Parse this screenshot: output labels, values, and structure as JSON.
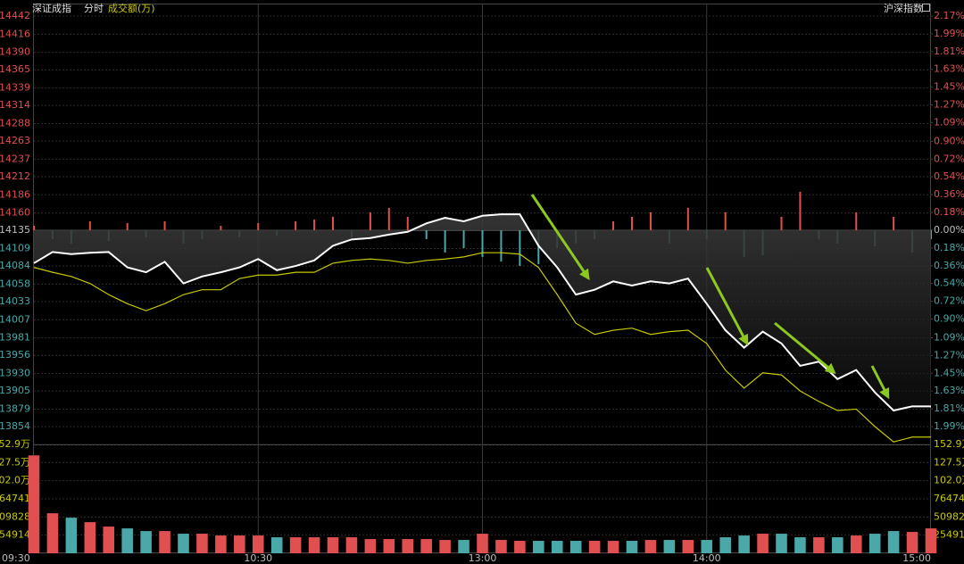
{
  "chart_data": {
    "type": "line",
    "title": "深证成指",
    "subtitle": "分时",
    "volume_label": "成交额(万)",
    "index_label": "沪深指数",
    "x": [
      0,
      5,
      10,
      15,
      20,
      25,
      30,
      35,
      40,
      45,
      50,
      55,
      60,
      65,
      70,
      75,
      80,
      85,
      90,
      95,
      100,
      105,
      110,
      115,
      120,
      125,
      130,
      135,
      140,
      145,
      150,
      155,
      160,
      165,
      170,
      175,
      180,
      185,
      190,
      195,
      200,
      205,
      210,
      215,
      220,
      225,
      230,
      235,
      240
    ],
    "xlim": [
      0,
      240
    ],
    "xticks": [
      {
        "value": 0,
        "label": "09:30"
      },
      {
        "value": 60,
        "label": "10:30"
      },
      {
        "value": 120,
        "label": "13:00"
      },
      {
        "value": 180,
        "label": "14:00"
      },
      {
        "value": 240,
        "label": "15:00"
      }
    ],
    "ylim": [
      13854,
      14442
    ],
    "yticks": [
      14442,
      14416,
      14390,
      14365,
      14339,
      14314,
      14288,
      14263,
      14237,
      14212,
      14186,
      14160,
      14135,
      14109,
      14084,
      14058,
      14033,
      14007,
      13981,
      13956,
      13930,
      13905,
      13879,
      13854
    ],
    "y2lim": [
      -1.99,
      2.17
    ],
    "y2ticks": [
      {
        "value": 2.17,
        "label": "2.17%"
      },
      {
        "value": 1.99,
        "label": "1.99%"
      },
      {
        "value": 1.81,
        "label": "1.81%"
      },
      {
        "value": 1.63,
        "label": "1.63%"
      },
      {
        "value": 1.45,
        "label": "1.45%"
      },
      {
        "value": 1.27,
        "label": "1.27%"
      },
      {
        "value": 1.09,
        "label": "1.09%"
      },
      {
        "value": 0.9,
        "label": "0.90%"
      },
      {
        "value": 0.72,
        "label": "0.72%"
      },
      {
        "value": 0.54,
        "label": "0.54%"
      },
      {
        "value": 0.36,
        "label": "0.36%"
      },
      {
        "value": 0.18,
        "label": "0.18%"
      },
      {
        "value": 0,
        "label": "0.00%"
      },
      {
        "value": -0.18,
        "label": "0.18%"
      },
      {
        "value": -0.36,
        "label": "0.36%"
      },
      {
        "value": -0.54,
        "label": "0.54%"
      },
      {
        "value": -0.72,
        "label": "0.72%"
      },
      {
        "value": -0.9,
        "label": "0.90%"
      },
      {
        "value": -1.09,
        "label": "1.09%"
      },
      {
        "value": -1.27,
        "label": "1.27%"
      },
      {
        "value": -1.45,
        "label": "1.45%"
      },
      {
        "value": -1.63,
        "label": "1.63%"
      },
      {
        "value": -1.81,
        "label": "1.81%"
      },
      {
        "value": -1.99,
        "label": "1.99%"
      }
    ],
    "up_color": "#e05050",
    "down_color": "#4aa8a8",
    "grid": true,
    "series": [
      {
        "color": "#ffffff",
        "values": [
          14088,
          14104,
          14101,
          14103,
          14104,
          14082,
          14075,
          14090,
          14059,
          14069,
          14075,
          14082,
          14094,
          14078,
          14084,
          14092,
          14113,
          14122,
          14124,
          14129,
          14133,
          14145,
          14153,
          14148,
          14156,
          14158,
          14158,
          14113,
          14082,
          14043,
          14050,
          14062,
          14056,
          14062,
          14059,
          14066,
          14030,
          13992,
          13967,
          13990,
          13973,
          13941,
          13947,
          13922,
          13935,
          13903,
          13877,
          13883,
          13883
        ]
      },
      {
        "color": "#c8c800",
        "values": [
          14082,
          14075,
          14069,
          14059,
          14043,
          14030,
          14020,
          14030,
          14043,
          14050,
          14050,
          14066,
          14071,
          14071,
          14075,
          14075,
          14088,
          14092,
          14094,
          14092,
          14088,
          14092,
          14094,
          14097,
          14103,
          14103,
          14101,
          14082,
          14043,
          14002,
          13986,
          13992,
          13995,
          13986,
          13990,
          13992,
          13973,
          13935,
          13909,
          13931,
          13928,
          13905,
          13890,
          13877,
          13879,
          13854,
          13832,
          13839,
          13839
        ]
      }
    ],
    "breadth": {
      "ylim": [
        -100,
        100
      ],
      "values": [
        5,
        -10,
        -15,
        10,
        -12,
        8,
        -8,
        10,
        -15,
        -10,
        5,
        -8,
        8,
        -6,
        10,
        12,
        15,
        -8,
        20,
        25,
        15,
        -10,
        -25,
        -20,
        -30,
        -35,
        -40,
        -38,
        -20,
        -15,
        -10,
        10,
        15,
        20,
        -15,
        25,
        -10,
        20,
        -30,
        -28,
        15,
        43,
        -10,
        -15,
        20,
        -18,
        15,
        -25,
        -10
      ]
    },
    "volume": {
      "ylim": [
        0,
        1529484
      ],
      "yticks": [
        {
          "value": 1529484,
          "label": "152.9万"
        },
        {
          "value": 1274570,
          "label": "127.5万"
        },
        {
          "value": 1019656,
          "label": "102.0万"
        },
        764741,
        509828,
        254914
      ],
      "color": "#c8c800",
      "values": [
        1375000,
        562500,
        500000,
        437500,
        375000,
        350000,
        312500,
        312500,
        275000,
        275000,
        250000,
        250000,
        250000,
        225000,
        225000,
        225000,
        225000,
        225000,
        200000,
        200000,
        200000,
        200000,
        187500,
        187500,
        275000,
        187500,
        175000,
        175000,
        175000,
        175000,
        175000,
        175000,
        175000,
        187500,
        187500,
        187500,
        187500,
        225000,
        250000,
        275000,
        275000,
        225000,
        225000,
        225000,
        250000,
        275000,
        312500,
        300000,
        350000
      ]
    }
  }
}
